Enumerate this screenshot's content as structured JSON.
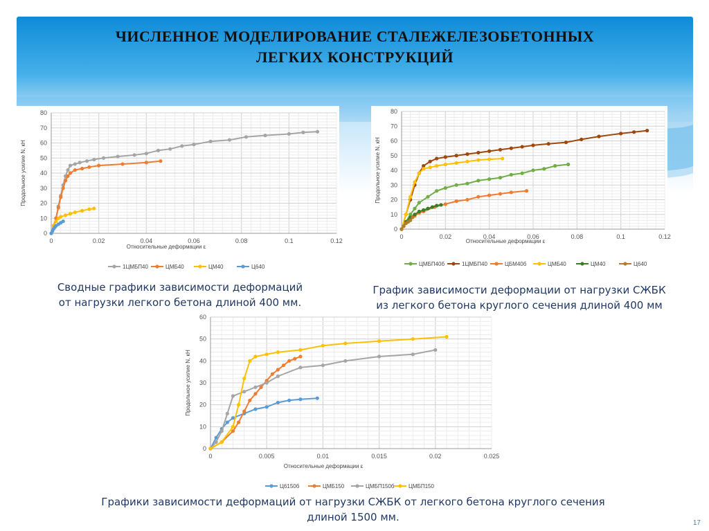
{
  "slide": {
    "title_line1": "ЧИСЛЕННОЕ МОДЕЛИРОВАНИЕ СТАЛЕЖЕЛЕЗОБЕТОННЫХ",
    "title_line2": "ЛЕГКИХ КОНСТРУКЦИЙ",
    "page_number": "17",
    "accent_color": "#0e8bd8"
  },
  "captions": {
    "left_line1": "Сводные графики зависимости деформаций",
    "left_line2": "от нагрузки легкого бетона длиной 400 мм.",
    "right_line1": "График зависимости деформации от нагрузки СЖБК",
    "right_line2": "из легкого бетона круглого сечения длиной 400 мм",
    "bottom_line1": "Графики зависимости деформаций от нагрузки СЖБК от легкого бетона круглого сечения",
    "bottom_line2": "длиной 1500 мм."
  },
  "chart_data": [
    {
      "type": "line",
      "xlabel": "Относительные деформации ε",
      "ylabel": "Продольное усилие N, кН",
      "xlim": [
        0,
        0.12
      ],
      "ylim": [
        0,
        80
      ],
      "xticks": [
        "0",
        "0.02",
        "0.04",
        "0.06",
        "0.08",
        "0.1",
        "0.12"
      ],
      "yticks": [
        "0",
        "10",
        "20",
        "30",
        "40",
        "50",
        "60",
        "70",
        "80"
      ],
      "grid": true,
      "legend_position": "bottom",
      "series": [
        {
          "name": "1ЦМБП40",
          "color": "#a5a5a5",
          "x": [
            0,
            0.001,
            0.002,
            0.003,
            0.004,
            0.005,
            0.006,
            0.007,
            0.008,
            0.01,
            0.012,
            0.015,
            0.018,
            0.022,
            0.028,
            0.035,
            0.04,
            0.045,
            0.05,
            0.055,
            0.06,
            0.067,
            0.075,
            0.082,
            0.09,
            0.1,
            0.106,
            0.112
          ],
          "y": [
            0,
            5,
            10,
            18,
            25,
            32,
            38,
            42,
            45,
            46,
            47,
            48,
            49,
            50,
            51,
            52,
            53,
            55,
            56,
            58,
            59,
            61,
            62,
            64,
            65,
            66,
            67,
            67.5
          ]
        },
        {
          "name": "ЦМБ40",
          "color": "#ed7d31",
          "x": [
            0,
            0.001,
            0.002,
            0.003,
            0.004,
            0.005,
            0.006,
            0.007,
            0.008,
            0.01,
            0.013,
            0.016,
            0.02,
            0.03,
            0.04,
            0.046
          ],
          "y": [
            0,
            5,
            10,
            17,
            24,
            30,
            35,
            38,
            40,
            42,
            43,
            44,
            45,
            46,
            47,
            48
          ]
        },
        {
          "name": "ЦМ40",
          "color": "#ffc000",
          "x": [
            0,
            0.001,
            0.002,
            0.003,
            0.004,
            0.006,
            0.008,
            0.01,
            0.013,
            0.016,
            0.018
          ],
          "y": [
            0,
            5,
            8,
            10,
            11,
            12,
            13,
            14,
            15,
            16,
            16.5
          ]
        },
        {
          "name": "Ц640",
          "color": "#5b9bd5",
          "x": [
            0,
            0.0005,
            0.001,
            0.0015,
            0.002,
            0.003,
            0.004,
            0.005
          ],
          "y": [
            0,
            1.5,
            3,
            4,
            5,
            6,
            7,
            8
          ]
        }
      ]
    },
    {
      "type": "line",
      "xlabel": "Относительные деформации ε",
      "ylabel": "Продольное усилие N, кН",
      "xlim": [
        0,
        0.12
      ],
      "ylim": [
        0,
        80
      ],
      "xticks": [
        "0",
        "0.02",
        "0.04",
        "0.06",
        "0.08",
        "0.1",
        "0.12"
      ],
      "yticks": [
        "0",
        "10",
        "20",
        "30",
        "40",
        "50",
        "60",
        "70",
        "80"
      ],
      "grid": true,
      "legend_position": "bottom",
      "series": [
        {
          "name": "ЦМБП40б",
          "color": "#70ad47",
          "x": [
            0,
            0.002,
            0.004,
            0.006,
            0.008,
            0.012,
            0.016,
            0.02,
            0.025,
            0.03,
            0.035,
            0.04,
            0.045,
            0.05,
            0.055,
            0.06,
            0.065,
            0.07,
            0.076
          ],
          "y": [
            0,
            5,
            10,
            14,
            18,
            22,
            26,
            28,
            30,
            31,
            33,
            34,
            35,
            37,
            38,
            40,
            41,
            43,
            44
          ]
        },
        {
          "name": "1ЦМБП40",
          "color": "#9e480e",
          "x": [
            0,
            0.002,
            0.004,
            0.006,
            0.008,
            0.01,
            0.013,
            0.016,
            0.02,
            0.025,
            0.03,
            0.035,
            0.04,
            0.045,
            0.05,
            0.055,
            0.06,
            0.067,
            0.075,
            0.082,
            0.09,
            0.1,
            0.106,
            0.112
          ],
          "y": [
            0,
            10,
            20,
            30,
            38,
            43,
            46,
            48,
            49,
            50,
            51,
            52,
            53,
            54,
            55,
            56,
            57,
            58,
            59,
            61,
            63,
            65,
            66,
            67
          ]
        },
        {
          "name": "ЦБМ40б",
          "color": "#ed7d31",
          "x": [
            0,
            0.002,
            0.004,
            0.006,
            0.008,
            0.01,
            0.015,
            0.02,
            0.025,
            0.03,
            0.035,
            0.04,
            0.045,
            0.05,
            0.057
          ],
          "y": [
            0,
            4,
            7,
            9,
            11,
            12,
            15,
            17,
            19,
            20,
            22,
            23,
            24,
            25,
            26
          ]
        },
        {
          "name": "ЦМБ40",
          "color": "#ffc000",
          "x": [
            0,
            0.002,
            0.004,
            0.006,
            0.008,
            0.01,
            0.013,
            0.016,
            0.02,
            0.025,
            0.03,
            0.035,
            0.04,
            0.046
          ],
          "y": [
            0,
            10,
            22,
            32,
            38,
            41,
            42,
            43,
            44,
            45,
            46,
            47,
            47.5,
            48
          ]
        },
        {
          "name": "ЦМ40",
          "color": "#3a7d22",
          "x": [
            0,
            0.002,
            0.004,
            0.006,
            0.008,
            0.01,
            0.012,
            0.014,
            0.016,
            0.018
          ],
          "y": [
            0,
            5,
            8,
            10,
            12,
            13,
            14,
            15,
            16,
            16.5
          ]
        },
        {
          "name": "Ц640",
          "color": "#b47d2b",
          "x": [
            0,
            0.001,
            0.002,
            0.003,
            0.004,
            0.005
          ],
          "y": [
            0,
            2,
            4,
            5,
            6,
            8
          ]
        }
      ]
    },
    {
      "type": "line",
      "xlabel": "Относительные деформации ε",
      "ylabel": "Продольное усилие N, кН",
      "xlim": [
        0,
        0.025
      ],
      "ylim": [
        0,
        60
      ],
      "xticks": [
        "0",
        "0.005",
        "0.01",
        "0.015",
        "0.02",
        "0.025"
      ],
      "yticks": [
        "0",
        "10",
        "20",
        "30",
        "40",
        "50",
        "60"
      ],
      "grid": true,
      "legend_position": "bottom",
      "series": [
        {
          "name": "Ц6150б",
          "color": "#5b9bd5",
          "x": [
            0,
            0.0005,
            0.001,
            0.0015,
            0.002,
            0.003,
            0.004,
            0.005,
            0.006,
            0.007,
            0.008,
            0.0095
          ],
          "y": [
            0,
            5,
            9,
            12,
            14,
            16,
            18,
            19,
            21,
            22,
            22.5,
            23
          ]
        },
        {
          "name": "ЦМБ150",
          "color": "#ed7d31",
          "x": [
            0,
            0.001,
            0.002,
            0.0025,
            0.003,
            0.0035,
            0.004,
            0.0045,
            0.005,
            0.0055,
            0.006,
            0.0065,
            0.007,
            0.0075,
            0.008
          ],
          "y": [
            0,
            3,
            8,
            12,
            17,
            22,
            25,
            28,
            31,
            34,
            36,
            38,
            40,
            41,
            42
          ]
        },
        {
          "name": "ЦМБП150б",
          "color": "#a5a5a5",
          "x": [
            0,
            0.0005,
            0.001,
            0.0015,
            0.002,
            0.003,
            0.004,
            0.005,
            0.006,
            0.008,
            0.01,
            0.012,
            0.015,
            0.018,
            0.02
          ],
          "y": [
            0,
            3,
            8,
            16,
            24,
            26,
            28,
            30,
            33,
            37,
            38,
            40,
            42,
            43,
            45
          ]
        },
        {
          "name": "ЦМБП150",
          "color": "#ffc000",
          "x": [
            0,
            0.001,
            0.002,
            0.0025,
            0.003,
            0.0035,
            0.004,
            0.005,
            0.006,
            0.008,
            0.01,
            0.012,
            0.015,
            0.018,
            0.021
          ],
          "y": [
            0,
            3,
            10,
            20,
            32,
            40,
            42,
            43,
            44,
            45,
            47,
            48,
            49,
            50,
            51
          ]
        }
      ]
    }
  ]
}
